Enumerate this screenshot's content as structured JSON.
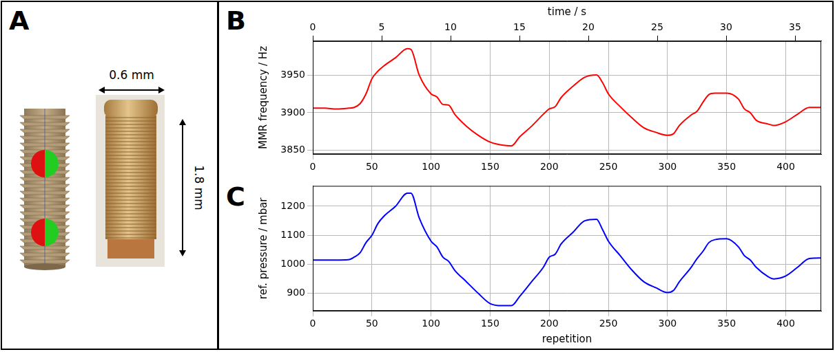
{
  "diagram": {
    "panel": "A",
    "width_label": "0.6 mm",
    "height_label": "1.8 mm"
  },
  "chart_data": [
    {
      "panel": "B",
      "type": "line",
      "color": "#ff0000",
      "grid": true,
      "x2_label": "time / s",
      "x2lim": [
        0,
        36.9
      ],
      "x2ticks": [
        0,
        5,
        10,
        15,
        20,
        25,
        30,
        35
      ],
      "y_label": "MMR frequency / Hz",
      "ylim": [
        3845,
        3995
      ],
      "yticks": [
        3850,
        3900,
        3950
      ],
      "xlim": [
        0,
        430
      ],
      "xticks": [
        0,
        50,
        100,
        150,
        200,
        250,
        300,
        350,
        400
      ],
      "x": [
        0,
        10,
        20,
        30,
        35,
        40,
        45,
        50,
        55,
        60,
        70,
        80,
        83,
        90,
        100,
        105,
        110,
        115,
        120,
        130,
        140,
        150,
        160,
        168,
        175,
        185,
        195,
        200,
        205,
        210,
        220,
        230,
        240,
        245,
        250,
        260,
        270,
        280,
        290,
        300,
        305,
        310,
        320,
        325,
        330,
        335,
        340,
        350,
        360,
        365,
        370,
        375,
        385,
        390,
        400,
        410,
        420,
        430
      ],
      "values": [
        3906,
        3906,
        3905,
        3906,
        3907,
        3912,
        3925,
        3945,
        3955,
        3962,
        3973,
        3985,
        3984,
        3950,
        3925,
        3921,
        3911,
        3910,
        3898,
        3882,
        3870,
        3861,
        3857,
        3856,
        3868,
        3882,
        3898,
        3905,
        3908,
        3920,
        3935,
        3947,
        3950,
        3940,
        3925,
        3908,
        3893,
        3880,
        3874,
        3870,
        3872,
        3883,
        3897,
        3902,
        3914,
        3924,
        3926,
        3926,
        3918,
        3905,
        3900,
        3890,
        3885,
        3883,
        3888,
        3898,
        3907,
        3907
      ]
    },
    {
      "panel": "C",
      "type": "line",
      "color": "#0000ff",
      "grid": true,
      "x_label": "repetition",
      "y_label": "ref. pressure / mbar",
      "ylim": [
        840,
        1270
      ],
      "yticks": [
        900,
        1000,
        1100,
        1200
      ],
      "xlim": [
        0,
        430
      ],
      "xticks": [
        0,
        50,
        100,
        150,
        200,
        250,
        300,
        350,
        400
      ],
      "x": [
        0,
        10,
        20,
        30,
        35,
        40,
        45,
        50,
        55,
        60,
        70,
        80,
        83,
        90,
        100,
        105,
        110,
        115,
        120,
        130,
        140,
        150,
        160,
        168,
        175,
        185,
        195,
        200,
        205,
        210,
        220,
        230,
        240,
        245,
        250,
        260,
        270,
        280,
        290,
        300,
        305,
        310,
        320,
        325,
        330,
        335,
        340,
        350,
        360,
        365,
        370,
        375,
        385,
        390,
        400,
        410,
        420,
        430
      ],
      "values": [
        1015,
        1015,
        1015,
        1016,
        1025,
        1040,
        1075,
        1100,
        1140,
        1165,
        1200,
        1245,
        1245,
        1160,
        1080,
        1060,
        1025,
        1010,
        980,
        940,
        900,
        865,
        858,
        858,
        890,
        940,
        990,
        1025,
        1035,
        1070,
        1110,
        1150,
        1155,
        1120,
        1080,
        1030,
        980,
        940,
        920,
        903,
        910,
        940,
        990,
        1020,
        1045,
        1075,
        1085,
        1088,
        1060,
        1030,
        1015,
        990,
        958,
        950,
        960,
        990,
        1020,
        1022
      ]
    }
  ]
}
